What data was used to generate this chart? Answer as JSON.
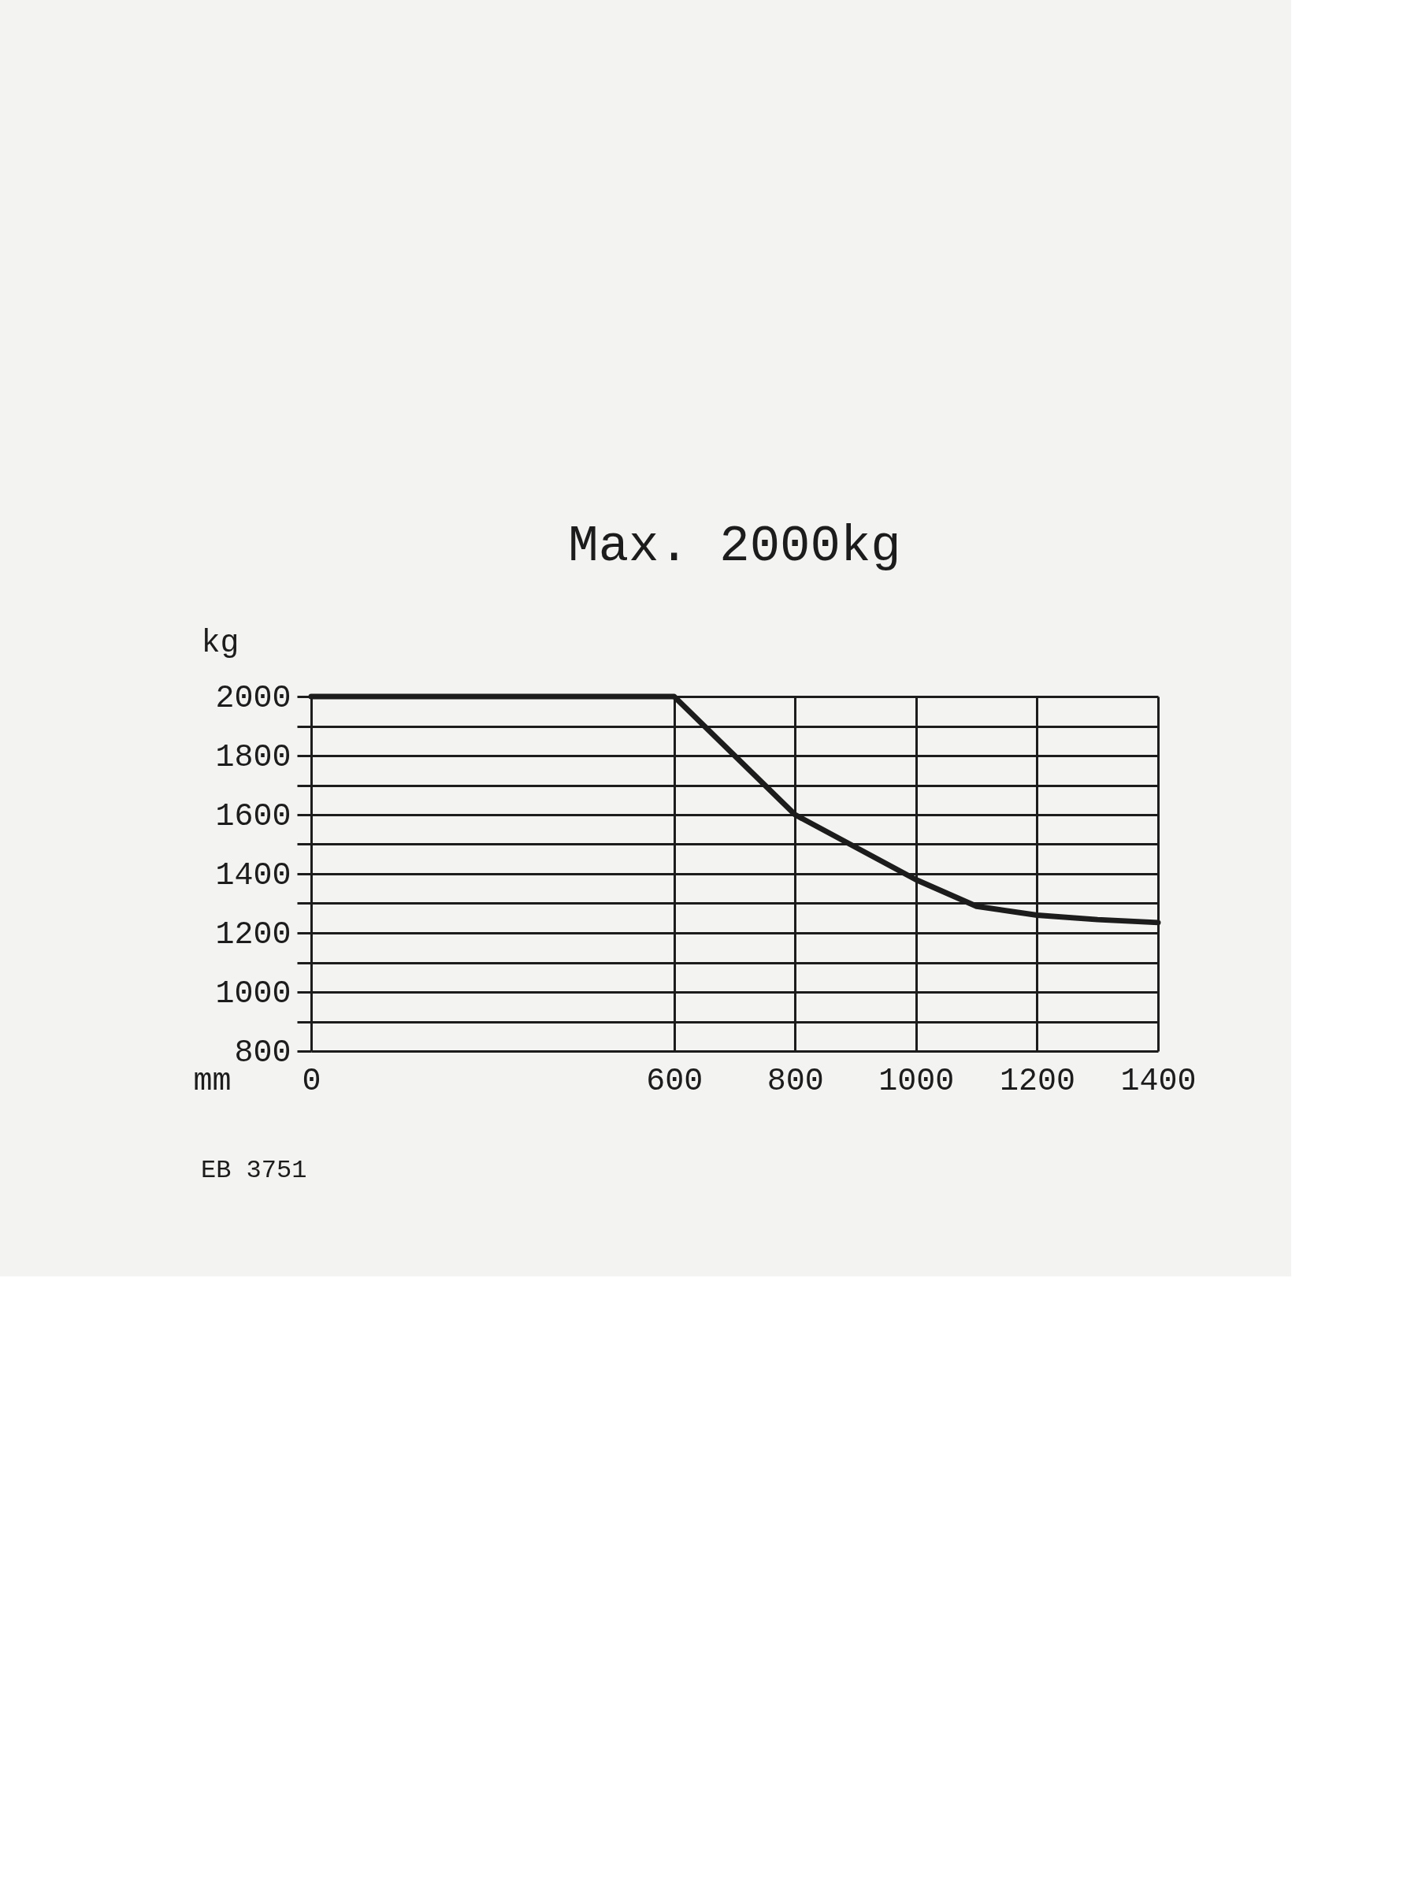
{
  "chart_data": {
    "type": "line",
    "title": "Max. 2000kg",
    "xlabel": "mm",
    "ylabel": "kg",
    "x": [
      0,
      600,
      700,
      800,
      900,
      1000,
      1100,
      1200,
      1300,
      1400
    ],
    "series": [
      {
        "color": "#1c1c1c",
        "values": [
          2000,
          2000,
          1800,
          1600,
          1490,
          1380,
          1290,
          1260,
          1245,
          1235
        ]
      }
    ],
    "xlim": [
      0,
      1400
    ],
    "xticks": [
      0,
      600,
      800,
      1000,
      1200,
      1400
    ],
    "ylim": [
      800,
      2000
    ],
    "yticks": [
      800,
      {
        "value": 900,
        "label": null
      },
      1000,
      {
        "value": 1100,
        "label": null
      },
      1200,
      {
        "value": 1300,
        "label": null
      },
      1400,
      {
        "value": 1500,
        "label": null
      },
      1600,
      {
        "value": 1700,
        "label": null
      },
      1800,
      {
        "value": 1900,
        "label": null
      },
      2000
    ],
    "grid": true,
    "line_style": "solid",
    "annotations": [
      "EB 3751"
    ]
  }
}
